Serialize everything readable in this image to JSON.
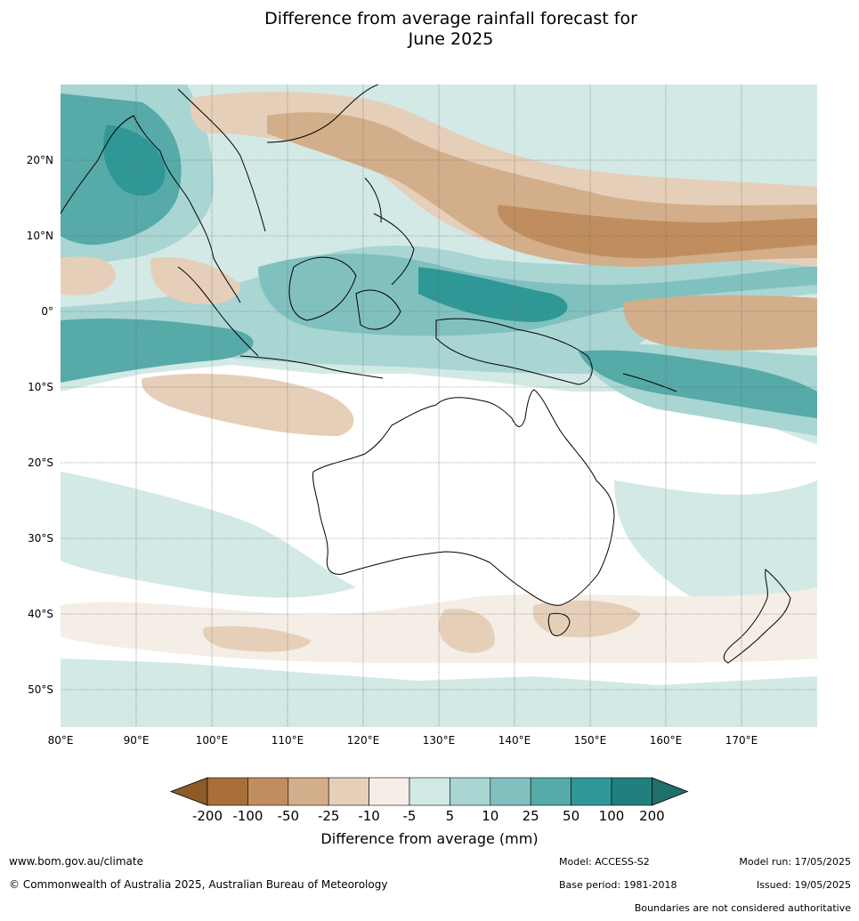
{
  "title_line1": "Difference from average rainfall forecast for",
  "title_line2": "June 2025",
  "map": {
    "lon_ticks": [
      "80°E",
      "90°E",
      "100°E",
      "110°E",
      "120°E",
      "130°E",
      "140°E",
      "150°E",
      "160°E",
      "170°E"
    ],
    "lat_ticks": [
      "20°N",
      "10°N",
      "0°",
      "10°S",
      "20°S",
      "30°S",
      "40°S",
      "50°S"
    ],
    "lon_range": [
      80,
      180
    ],
    "lat_range": [
      -55,
      30
    ]
  },
  "colorbar": {
    "labels": [
      "-200",
      "-100",
      "-50",
      "-25",
      "-10",
      "-5",
      "5",
      "10",
      "25",
      "50",
      "100",
      "200"
    ],
    "colors": [
      "#a86f38",
      "#c08e5e",
      "#d3ae8a",
      "#e6cfb9",
      "#f4eee6",
      "#ffffff",
      "#d3e9e6",
      "#a9d5d3",
      "#80c1bf",
      "#56aaa8",
      "#2f9896",
      "#217f7d"
    ],
    "extend_low_color": "#8e5a27",
    "extend_high_color": "#1f6f6d",
    "title": "Difference from average (mm)"
  },
  "footer": {
    "website": "www.bom.gov.au/climate",
    "copyright": "© Commonwealth of Australia 2025, Australian Bureau of Meteorology",
    "model": "Model: ACCESS-S2",
    "base_period": "Base period: 1981-2018",
    "model_run": "Model run: 17/05/2025",
    "issued": "Issued: 19/05/2025",
    "disclaimer": "Boundaries are not considered authoritative"
  }
}
